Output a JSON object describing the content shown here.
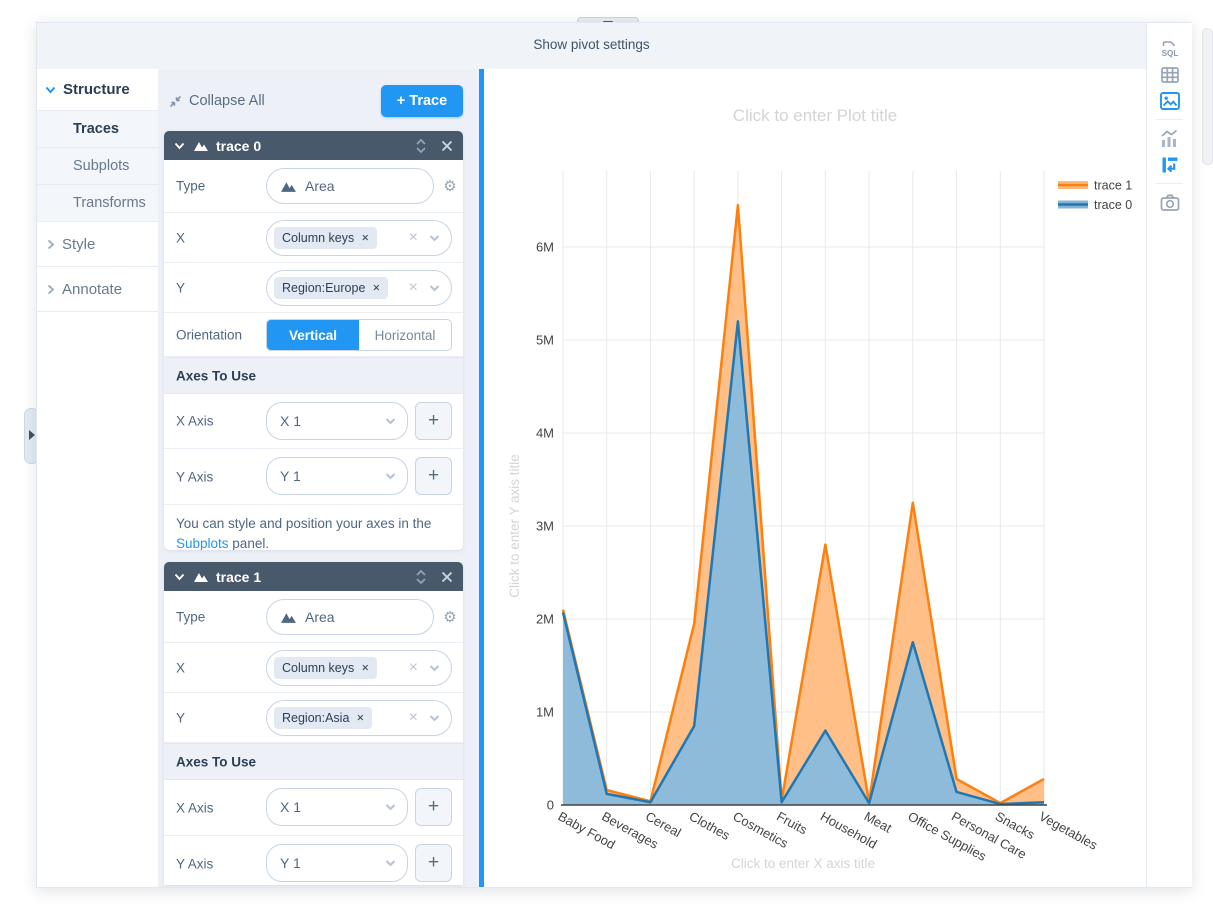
{
  "accent_color": "#2196f3",
  "top_bar": {
    "label": "Show pivot settings"
  },
  "nav": {
    "structure_label": "Structure",
    "sub_items": [
      {
        "label": "Traces",
        "active": true
      },
      {
        "label": "Subplots",
        "active": false
      },
      {
        "label": "Transforms",
        "active": false
      }
    ],
    "style_label": "Style",
    "annotate_label": "Annotate"
  },
  "settings_header": {
    "collapse_all_label": "Collapse All",
    "add_trace_label": "+ Trace"
  },
  "traces": [
    {
      "title": "trace 0",
      "type_label": "Type",
      "type_value": "Area",
      "x_label": "X",
      "x_value": "Column keys",
      "y_label": "Y",
      "y_value": "Region:Europe",
      "orientation_label": "Orientation",
      "orientation_vertical": "Vertical",
      "orientation_horizontal": "Horizontal",
      "orientation_selected": "Vertical",
      "axes_section_label": "Axes To Use",
      "x_axis_label": "X Axis",
      "x_axis_value": "X 1",
      "y_axis_label": "Y Axis",
      "y_axis_value": "Y 1",
      "axes_hint_before": "You can style and position your axes in the ",
      "axes_hint_link": "Subplots",
      "axes_hint_after": " panel."
    },
    {
      "title": "trace 1",
      "type_label": "Type",
      "type_value": "Area",
      "x_label": "X",
      "x_value": "Column keys",
      "y_label": "Y",
      "y_value": "Region:Asia",
      "axes_section_label": "Axes To Use",
      "x_axis_label": "X Axis",
      "x_axis_value": "X 1",
      "y_axis_label": "Y Axis",
      "y_axis_value": "Y 1"
    }
  ],
  "toolbar": {
    "sql_label": "SQL"
  },
  "chart_data": {
    "type": "area",
    "title_placeholder": "Click to enter Plot title",
    "x_title_placeholder": "Click to enter X axis title",
    "y_title_placeholder": "Click to enter Y axis title",
    "categories": [
      "Baby Food",
      "Beverages",
      "Cereal",
      "Clothes",
      "Cosmetics",
      "Fruits",
      "Household",
      "Meat",
      "Office Supplies",
      "Personal Care",
      "Snacks",
      "Vegetables"
    ],
    "series": [
      {
        "name": "trace 1",
        "region": "Region:Asia",
        "color": "#ff7f0e",
        "values_millions": [
          2.1,
          0.16,
          0.04,
          1.95,
          6.45,
          0.05,
          2.8,
          0.03,
          3.25,
          0.28,
          0.02,
          0.28
        ]
      },
      {
        "name": "trace 0",
        "region": "Region:Europe",
        "color": "#1f77b4",
        "values_millions": [
          2.07,
          0.12,
          0.03,
          0.85,
          5.2,
          0.03,
          0.8,
          0.02,
          1.75,
          0.14,
          0.01,
          0.03
        ]
      }
    ],
    "y_ticks": [
      "0",
      "1M",
      "2M",
      "3M",
      "4M",
      "5M",
      "6M"
    ],
    "ylim_millions": [
      0,
      6.8
    ],
    "grid": true,
    "legend": [
      "trace 1",
      "trace 0"
    ],
    "legend_position": "top-right"
  }
}
